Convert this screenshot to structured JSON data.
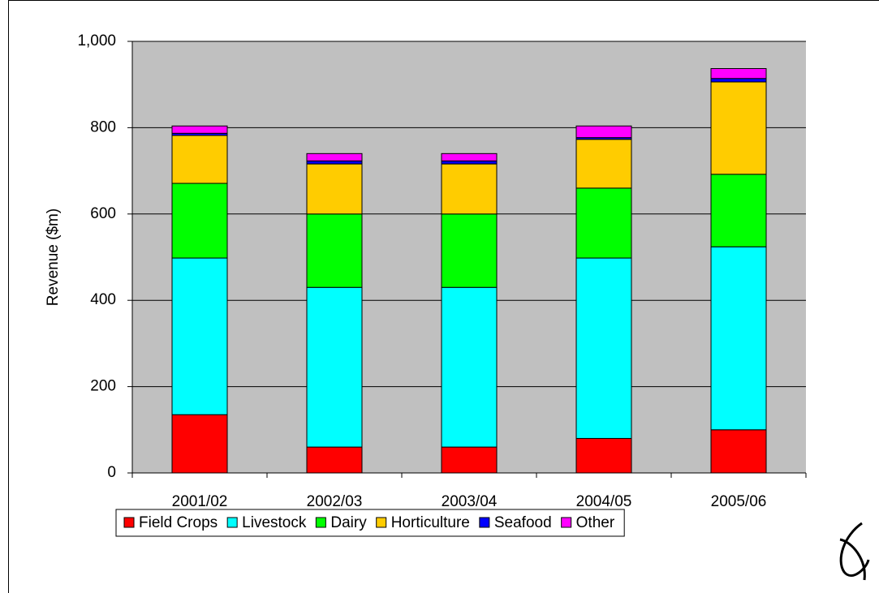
{
  "chart_data": {
    "type": "stacked-bar",
    "y_label": "Revenue ($m)",
    "categories": [
      "2001/02",
      "2002/03",
      "2003/04",
      "2004/05",
      "2005/06"
    ],
    "series": [
      {
        "name": "Field Crops",
        "color": "#ff0000",
        "values": [
          135,
          60,
          60,
          80,
          100
        ]
      },
      {
        "name": "Livestock",
        "color": "#00ffff",
        "values": [
          363,
          370,
          370,
          418,
          424
        ]
      },
      {
        "name": "Dairy",
        "color": "#00ff00",
        "values": [
          173,
          170,
          170,
          162,
          168
        ]
      },
      {
        "name": "Horticulture",
        "color": "#ffcc00",
        "values": [
          111,
          116,
          116,
          113,
          214
        ]
      },
      {
        "name": "Seafood",
        "color": "#0000ff",
        "values": [
          5,
          7,
          7,
          4,
          8
        ]
      },
      {
        "name": "Other",
        "color": "#ff00ff",
        "values": [
          17,
          17,
          17,
          27,
          23
        ]
      }
    ],
    "ylim": [
      0,
      1000
    ],
    "yticks": [
      0,
      200,
      400,
      600,
      800,
      {
        "value": 1000,
        "label": "1,000"
      }
    ],
    "grid": true,
    "plot_background": "#c0c0c0",
    "legend": "bottom"
  }
}
